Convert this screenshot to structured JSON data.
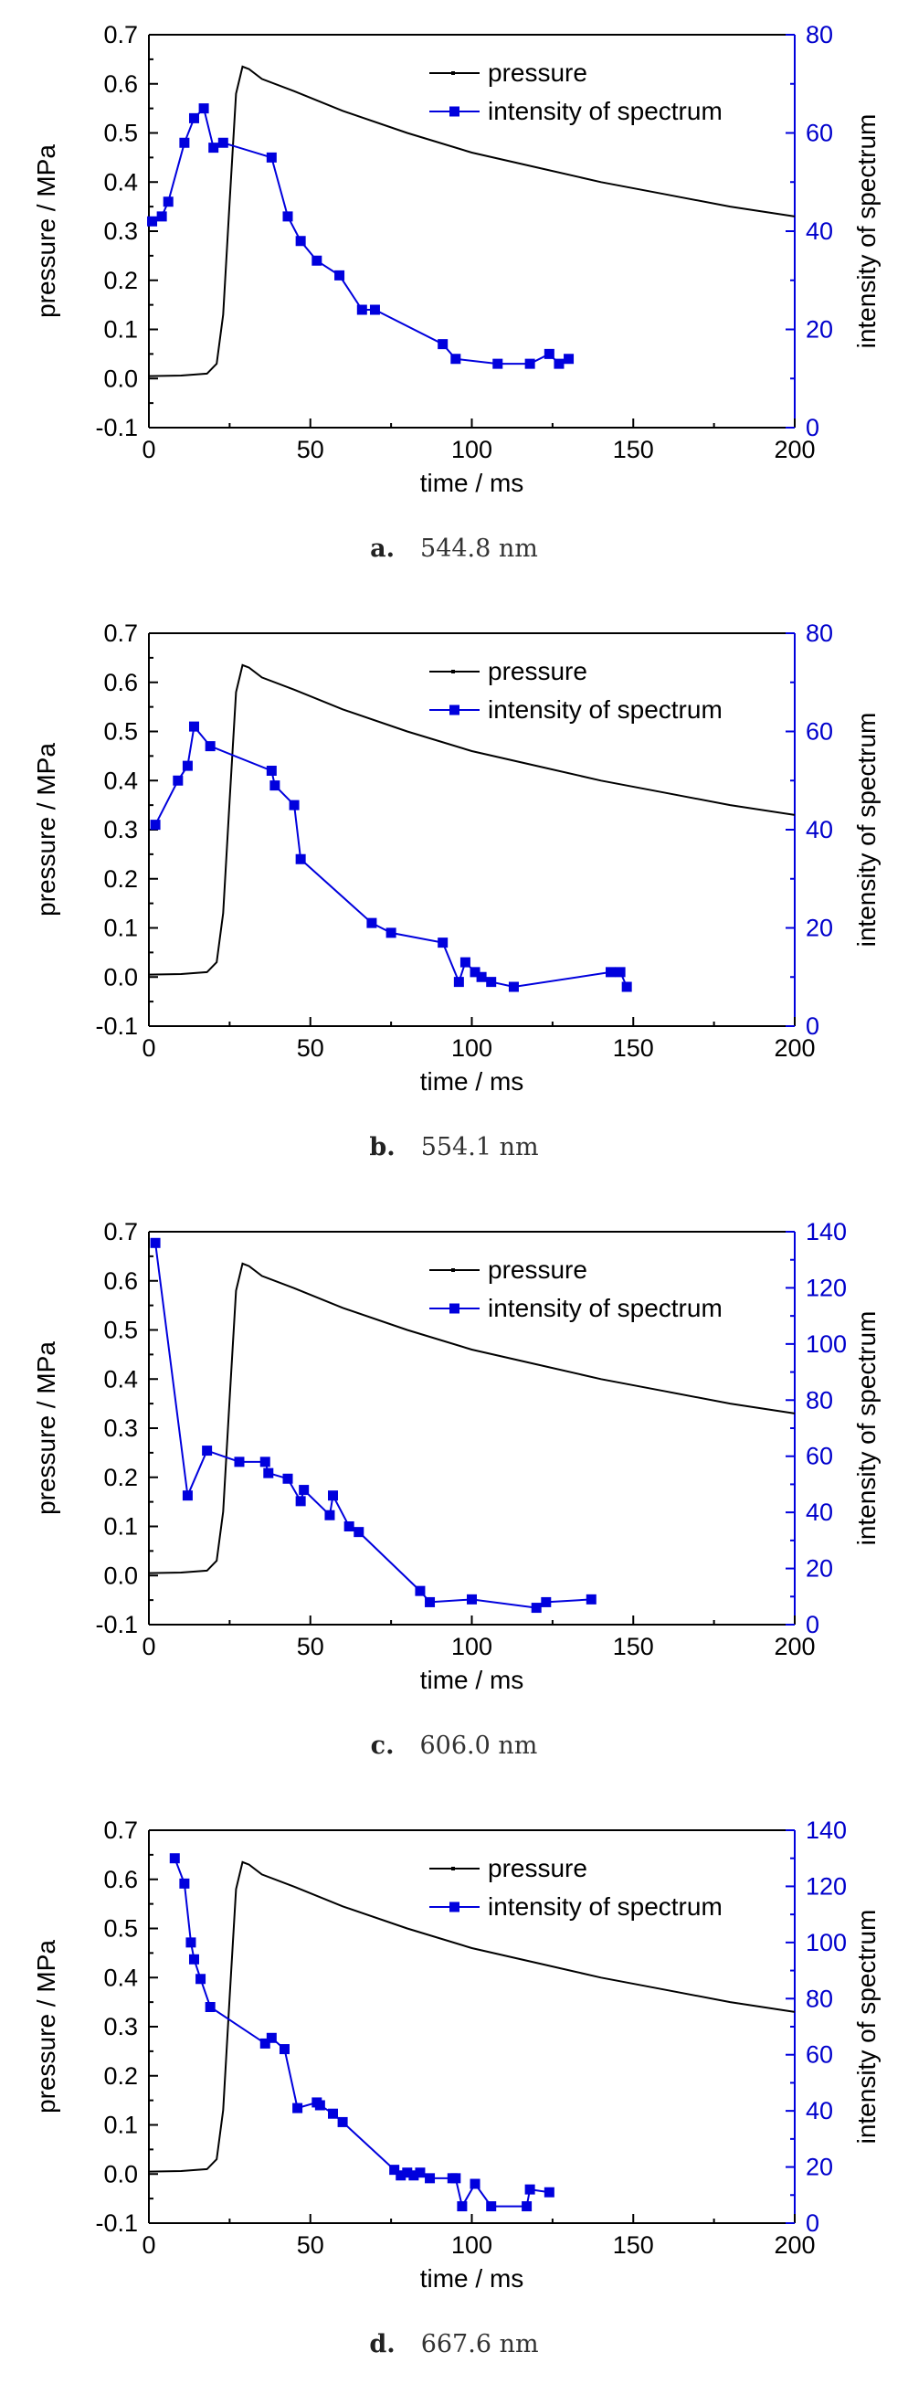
{
  "chart_data": [
    {
      "type": "line",
      "caption_letter": "a.",
      "caption_text": "544.8 nm",
      "xlabel": "time / ms",
      "ylabel": "pressure / MPa",
      "ylabel_right": "intensity of spectrum",
      "xlim": [
        0,
        200
      ],
      "ylim": [
        -0.1,
        0.7
      ],
      "ylim_right": [
        0,
        80
      ],
      "x_ticks": [
        "0",
        "50",
        "100",
        "150",
        "200"
      ],
      "y_ticks": [
        "-0.1",
        "0.0",
        "0.1",
        "0.2",
        "0.3",
        "0.4",
        "0.5",
        "0.6",
        "0.7"
      ],
      "y_right_ticks": [
        "0",
        "20",
        "40",
        "60",
        "80"
      ],
      "legend": [
        "pressure",
        "intensity of spectrum"
      ],
      "colors": {
        "pressure": "#000000",
        "intensity": "#0000dd"
      },
      "series": [
        {
          "name": "pressure",
          "axis": "left",
          "x": [
            0,
            10,
            18,
            21,
            23,
            25,
            27,
            29,
            31,
            35,
            45,
            60,
            80,
            100,
            120,
            140,
            160,
            180,
            200
          ],
          "y": [
            0.005,
            0.006,
            0.01,
            0.03,
            0.13,
            0.36,
            0.58,
            0.635,
            0.63,
            0.61,
            0.585,
            0.545,
            0.5,
            0.46,
            0.43,
            0.4,
            0.375,
            0.35,
            0.33
          ]
        },
        {
          "name": "intensity of spectrum",
          "axis": "right",
          "x": [
            1,
            4,
            6,
            11,
            14,
            17,
            20,
            23,
            38,
            43,
            47,
            52,
            59,
            66,
            70,
            91,
            95,
            108,
            118,
            124,
            127,
            130
          ],
          "y": [
            42,
            43,
            46,
            58,
            63,
            65,
            57,
            58,
            55,
            43,
            38,
            34,
            31,
            24,
            24,
            17,
            14,
            13,
            13,
            15,
            13,
            14
          ]
        }
      ]
    },
    {
      "type": "line",
      "caption_letter": "b.",
      "caption_text": "554.1 nm",
      "xlabel": "time / ms",
      "ylabel": "pressure / MPa",
      "ylabel_right": "intensity of spectrum",
      "xlim": [
        0,
        200
      ],
      "ylim": [
        -0.1,
        0.7
      ],
      "ylim_right": [
        0,
        80
      ],
      "x_ticks": [
        "0",
        "50",
        "100",
        "150",
        "200"
      ],
      "y_ticks": [
        "-0.1",
        "0.0",
        "0.1",
        "0.2",
        "0.3",
        "0.4",
        "0.5",
        "0.6",
        "0.7"
      ],
      "y_right_ticks": [
        "0",
        "20",
        "40",
        "60",
        "80"
      ],
      "legend": [
        "pressure",
        "intensity of spectrum"
      ],
      "colors": {
        "pressure": "#000000",
        "intensity": "#0000dd"
      },
      "series": [
        {
          "name": "pressure",
          "axis": "left",
          "x": [
            0,
            10,
            18,
            21,
            23,
            25,
            27,
            29,
            31,
            35,
            45,
            60,
            80,
            100,
            120,
            140,
            160,
            180,
            200
          ],
          "y": [
            0.005,
            0.006,
            0.01,
            0.03,
            0.13,
            0.36,
            0.58,
            0.635,
            0.63,
            0.61,
            0.585,
            0.545,
            0.5,
            0.46,
            0.43,
            0.4,
            0.375,
            0.35,
            0.33
          ]
        },
        {
          "name": "intensity of spectrum",
          "axis": "right",
          "x": [
            2,
            9,
            12,
            14,
            19,
            38,
            39,
            45,
            47,
            69,
            75,
            91,
            96,
            98,
            101,
            103,
            106,
            113,
            143,
            146,
            148
          ],
          "y": [
            41,
            50,
            53,
            61,
            57,
            52,
            49,
            45,
            34,
            21,
            19,
            17,
            9,
            13,
            11,
            10,
            9,
            8,
            11,
            11,
            8
          ]
        }
      ]
    },
    {
      "type": "line",
      "caption_letter": "c.",
      "caption_text": "606.0 nm",
      "xlabel": "time / ms",
      "ylabel": "pressure / MPa",
      "ylabel_right": "intensity of spectrum",
      "xlim": [
        0,
        200
      ],
      "ylim": [
        -0.1,
        0.7
      ],
      "ylim_right": [
        0,
        140
      ],
      "x_ticks": [
        "0",
        "50",
        "100",
        "150",
        "200"
      ],
      "y_ticks": [
        "-0.1",
        "0.0",
        "0.1",
        "0.2",
        "0.3",
        "0.4",
        "0.5",
        "0.6",
        "0.7"
      ],
      "y_right_ticks": [
        "0",
        "20",
        "40",
        "60",
        "80",
        "100",
        "120",
        "140"
      ],
      "legend": [
        "pressure",
        "intensity of spectrum"
      ],
      "colors": {
        "pressure": "#000000",
        "intensity": "#0000dd"
      },
      "series": [
        {
          "name": "pressure",
          "axis": "left",
          "x": [
            0,
            10,
            18,
            21,
            23,
            25,
            27,
            29,
            31,
            35,
            45,
            60,
            80,
            100,
            120,
            140,
            160,
            180,
            200
          ],
          "y": [
            0.005,
            0.006,
            0.01,
            0.03,
            0.13,
            0.36,
            0.58,
            0.635,
            0.63,
            0.61,
            0.585,
            0.545,
            0.5,
            0.46,
            0.43,
            0.4,
            0.375,
            0.35,
            0.33
          ]
        },
        {
          "name": "intensity of spectrum",
          "axis": "right",
          "x": [
            2,
            12,
            18,
            28,
            36,
            37,
            43,
            47,
            48,
            56,
            57,
            62,
            65,
            84,
            87,
            100,
            120,
            123,
            137
          ],
          "y": [
            136,
            46,
            62,
            58,
            58,
            54,
            52,
            44,
            48,
            39,
            46,
            35,
            33,
            12,
            8,
            9,
            6,
            8,
            9
          ]
        }
      ]
    },
    {
      "type": "line",
      "caption_letter": "d.",
      "caption_text": "667.6 nm",
      "xlabel": "time / ms",
      "ylabel": "pressure / MPa",
      "ylabel_right": "intensity of spectrum",
      "xlim": [
        0,
        200
      ],
      "ylim": [
        -0.1,
        0.7
      ],
      "ylim_right": [
        0,
        140
      ],
      "x_ticks": [
        "0",
        "50",
        "100",
        "150",
        "200"
      ],
      "y_ticks": [
        "-0.1",
        "0.0",
        "0.1",
        "0.2",
        "0.3",
        "0.4",
        "0.5",
        "0.6",
        "0.7"
      ],
      "y_right_ticks": [
        "0",
        "20",
        "40",
        "60",
        "80",
        "100",
        "120",
        "140"
      ],
      "legend": [
        "pressure",
        "intensity of spectrum"
      ],
      "colors": {
        "pressure": "#000000",
        "intensity": "#0000dd"
      },
      "series": [
        {
          "name": "pressure",
          "axis": "left",
          "x": [
            0,
            10,
            18,
            21,
            23,
            25,
            27,
            29,
            31,
            35,
            45,
            60,
            80,
            100,
            120,
            140,
            160,
            180,
            200
          ],
          "y": [
            0.005,
            0.006,
            0.01,
            0.03,
            0.13,
            0.36,
            0.58,
            0.635,
            0.63,
            0.61,
            0.585,
            0.545,
            0.5,
            0.46,
            0.43,
            0.4,
            0.375,
            0.35,
            0.33
          ]
        },
        {
          "name": "intensity of spectrum",
          "axis": "right",
          "x": [
            8,
            11,
            13,
            14,
            16,
            19,
            36,
            38,
            42,
            46,
            52,
            53,
            57,
            60,
            76,
            78,
            80,
            82,
            84,
            87,
            94,
            95,
            97,
            101,
            106,
            117,
            118,
            124
          ],
          "y": [
            130,
            121,
            100,
            94,
            87,
            77,
            64,
            66,
            62,
            41,
            43,
            42,
            39,
            36,
            19,
            17,
            18,
            17,
            18,
            16,
            16,
            16,
            6,
            14,
            6,
            6,
            12,
            11
          ]
        }
      ]
    }
  ]
}
